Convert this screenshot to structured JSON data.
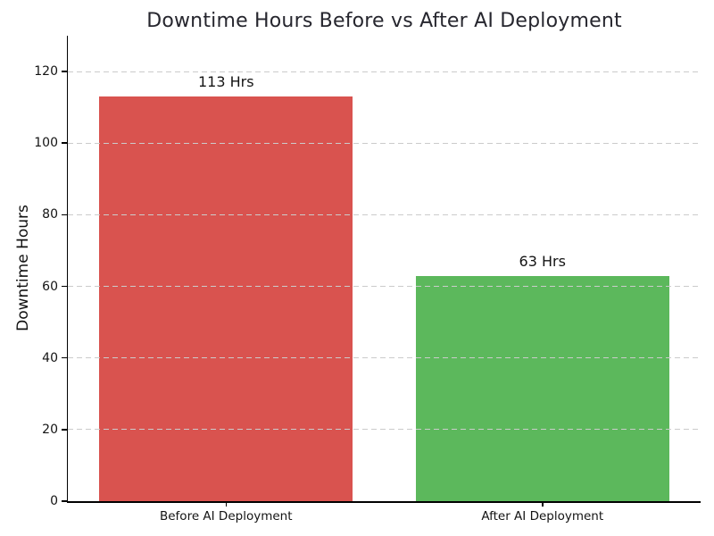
{
  "chart_data": {
    "type": "bar",
    "title": "Downtime Hours Before vs After AI Deployment",
    "xlabel": "",
    "ylabel": "Downtime Hours",
    "categories": [
      "Before AI Deployment",
      "After AI Deployment"
    ],
    "values": [
      113,
      63
    ],
    "value_labels": [
      "113 Hrs",
      "63 Hrs"
    ],
    "bar_colors": [
      "#d9534f",
      "#5cb85c"
    ],
    "ylim": [
      0,
      130
    ],
    "yticks": [
      0,
      20,
      40,
      60,
      80,
      100,
      120
    ],
    "grid": "horizontal-dashed",
    "grid_color": "#cbcbcb",
    "legend": "none",
    "title_color": "#26262e",
    "text_color": "#141414",
    "spine_color": "#000000",
    "background_color": "#ffffff",
    "bar_width_fraction": 0.8
  }
}
